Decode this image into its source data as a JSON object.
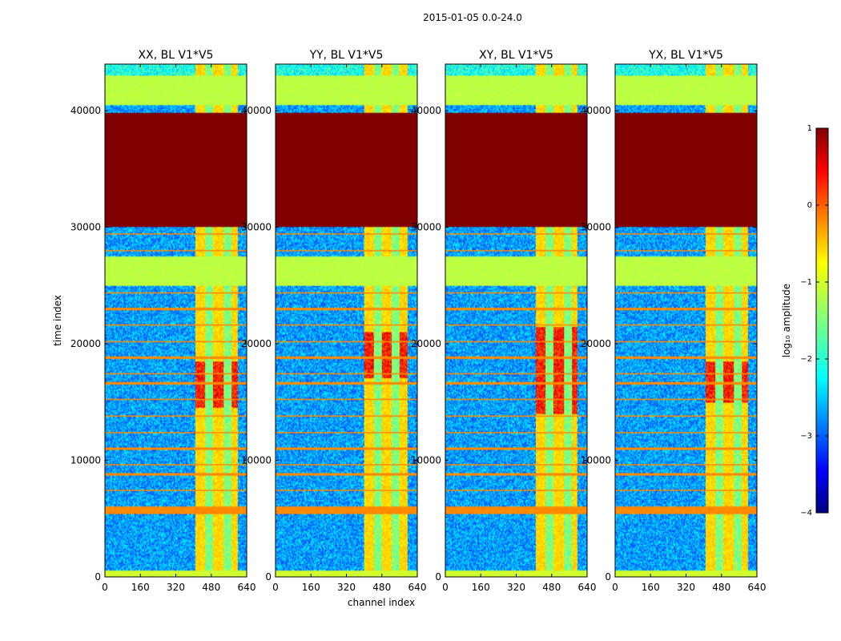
{
  "chart_data": {
    "type": "heatmap",
    "suptitle": "2015-01-05 0.0-24.0",
    "xlabel": "channel index",
    "ylabel": "time index",
    "xlim": [
      0,
      640
    ],
    "ylim": [
      0,
      44000
    ],
    "xticks": [
      0,
      160,
      320,
      480,
      640
    ],
    "yticks": [
      0,
      10000,
      20000,
      30000,
      40000
    ],
    "panels": [
      {
        "title": "XX, BL V1*V5",
        "band_channels": [
          410,
          600
        ],
        "active_times": [
          [
            14500,
            18500
          ]
        ]
      },
      {
        "title": "YY, BL V1*V5",
        "band_channels": [
          400,
          595
        ],
        "active_times": [
          [
            17000,
            21000
          ]
        ]
      },
      {
        "title": "XY, BL V1*V5",
        "band_channels": [
          410,
          595
        ],
        "active_times": [
          [
            14000,
            21500
          ]
        ]
      },
      {
        "title": "YX, BL V1*V5",
        "band_channels": [
          410,
          600
        ],
        "active_times": [
          [
            15000,
            18500
          ]
        ]
      }
    ],
    "regions": [
      {
        "t0": 0,
        "t1": 600,
        "log_amplitude": -1.1
      },
      {
        "t0": 30000,
        "t1": 39800,
        "log_amplitude": 1.0
      },
      {
        "t0": 25000,
        "t1": 27500,
        "log_amplitude": -1.2
      },
      {
        "t0": 40500,
        "t1": 43000,
        "log_amplitude": -1.2
      },
      {
        "t0": 5400,
        "t1": 6000,
        "log_amplitude": -0.3
      }
    ],
    "colorbar": {
      "label": "log₁₀ amplitude",
      "min": -4,
      "max": 1,
      "ticks": [
        "1",
        "0",
        "−1",
        "−2",
        "−3",
        "−4"
      ],
      "colormap": "jet"
    }
  }
}
